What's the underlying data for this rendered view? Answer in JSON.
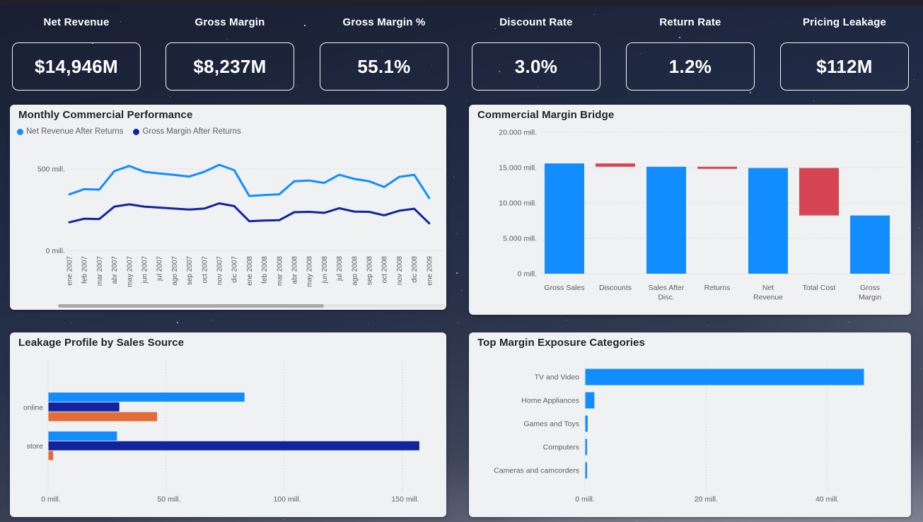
{
  "colors": {
    "light_blue": "#118DFF",
    "navy": "#12239E",
    "orange": "#E66C37",
    "red": "#D64554",
    "card_bg": "#EFF1F3",
    "title_text": "#252423",
    "axis_text": "#605E5C",
    "kpi_text": "#FFFFFF"
  },
  "kpis": [
    {
      "label": "Net Revenue",
      "value": "$14,946M"
    },
    {
      "label": "Gross Margin",
      "value": "$8,237M"
    },
    {
      "label": "Gross Margin %",
      "value": "55.1%"
    },
    {
      "label": "Discount Rate",
      "value": "3.0%"
    },
    {
      "label": "Return Rate",
      "value": "1.2%"
    },
    {
      "label": "Pricing Leakage",
      "value": "$112M"
    }
  ],
  "chart_data": [
    {
      "id": "monthly-performance",
      "type": "line",
      "title": "Monthly Commercial Performance",
      "unit": "mill.",
      "ylim": [
        0,
        500
      ],
      "grid": "dotted-horizontal",
      "legend_position": "top-left",
      "has_scrollbar": true,
      "y_ticks": [
        {
          "value": 0,
          "label": "0 mill."
        },
        {
          "value": 500,
          "label": "500 mill."
        }
      ],
      "x": [
        "ene 2007",
        "feb 2007",
        "mar 2007",
        "abr 2007",
        "may 2007",
        "jun 2007",
        "jul 2007",
        "ago 2007",
        "sep 2007",
        "oct 2007",
        "nov 2007",
        "dic 2007",
        "ene 2008",
        "feb 2008",
        "mar 2008",
        "abr 2008",
        "may 2008",
        "jun 2008",
        "jul 2008",
        "ago 2008",
        "sep 2008",
        "oct 2008",
        "nov 2008",
        "dic 2008",
        "ene 2009"
      ],
      "series": [
        {
          "name": "Net Revenue After Returns",
          "color": "#118DFF",
          "values": [
            345,
            377,
            374,
            487,
            519,
            483,
            473,
            464,
            454,
            483,
            526,
            493,
            335,
            341,
            345,
            425,
            430,
            415,
            465,
            440,
            425,
            390,
            452,
            465,
            323
          ]
        },
        {
          "name": "Gross Margin After Returns",
          "color": "#12239E",
          "values": [
            174,
            196,
            194,
            270,
            284,
            270,
            264,
            258,
            252,
            258,
            290,
            273,
            181,
            185,
            187,
            236,
            238,
            232,
            260,
            240,
            238,
            217,
            245,
            257,
            168
          ]
        }
      ]
    },
    {
      "id": "margin-bridge",
      "type": "bar",
      "subtype": "waterfall",
      "title": "Commercial Margin Bridge",
      "unit": "mill.",
      "ylim": [
        0,
        20000
      ],
      "grid": "dotted-horizontal",
      "total_color": "#118DFF",
      "decrease_color": "#D64554",
      "y_ticks": [
        {
          "value": 0,
          "label": "0 mill."
        },
        {
          "value": 5000,
          "label": "5.000 mill."
        },
        {
          "value": 10000,
          "label": "10.000 mill."
        },
        {
          "value": 15000,
          "label": "15.000 mill."
        },
        {
          "value": 20000,
          "label": "20.000 mill."
        }
      ],
      "bars": [
        {
          "label": "Gross Sales",
          "label_lines": [
            "Gross Sales"
          ],
          "value": 15595,
          "kind": "total"
        },
        {
          "label": "Discounts",
          "label_lines": [
            "Discounts"
          ],
          "value": -468,
          "kind": "decrease"
        },
        {
          "label": "Sales After Disc.",
          "label_lines": [
            "Sales After",
            "Disc."
          ],
          "value": 15127,
          "kind": "total"
        },
        {
          "label": "Returns",
          "label_lines": [
            "Returns"
          ],
          "value": -181,
          "kind": "decrease"
        },
        {
          "label": "Net Revenue",
          "label_lines": [
            "Net",
            "Revenue"
          ],
          "value": 14946,
          "kind": "total"
        },
        {
          "label": "Total Cost",
          "label_lines": [
            "Total Cost"
          ],
          "value": -6709,
          "kind": "decrease"
        },
        {
          "label": "Gross Margin",
          "label_lines": [
            "Gross",
            "Margin"
          ],
          "value": 8237,
          "kind": "total"
        }
      ]
    },
    {
      "id": "leakage-profile",
      "type": "bar",
      "subtype": "grouped-horizontal",
      "title": "Leakage Profile by Sales Source",
      "unit": "mill.",
      "xlim": [
        0,
        165
      ],
      "grid": "dotted-vertical",
      "categories": [
        "online",
        "store"
      ],
      "x_ticks": [
        {
          "value": 0,
          "label": "0 mill."
        },
        {
          "value": 50,
          "label": "50 mill."
        },
        {
          "value": 100,
          "label": "100 mill."
        },
        {
          "value": 150,
          "label": "150 mill."
        }
      ],
      "series": [
        {
          "name": "series-light-blue",
          "color": "#118DFF",
          "values": [
            83,
            29
          ]
        },
        {
          "name": "series-navy",
          "color": "#12239E",
          "values": [
            30,
            157
          ]
        },
        {
          "name": "series-orange",
          "color": "#E66C37",
          "values": [
            46,
            2
          ]
        }
      ]
    },
    {
      "id": "margin-exposure",
      "type": "bar",
      "subtype": "horizontal",
      "title": "Top Margin Exposure Categories",
      "unit": "mill.",
      "xlim": [
        0,
        48
      ],
      "grid": "dotted-vertical",
      "bar_color": "#118DFF",
      "categories": [
        "TV and Video",
        "Home Appliances",
        "Games and Toys",
        "Computers",
        "Cameras and camcorders"
      ],
      "values": [
        46,
        1.5,
        0.4,
        0.3,
        0.3
      ],
      "x_ticks": [
        {
          "value": 0,
          "label": "0 mill."
        },
        {
          "value": 20,
          "label": "20 mill."
        },
        {
          "value": 40,
          "label": "40 mill."
        }
      ]
    }
  ]
}
